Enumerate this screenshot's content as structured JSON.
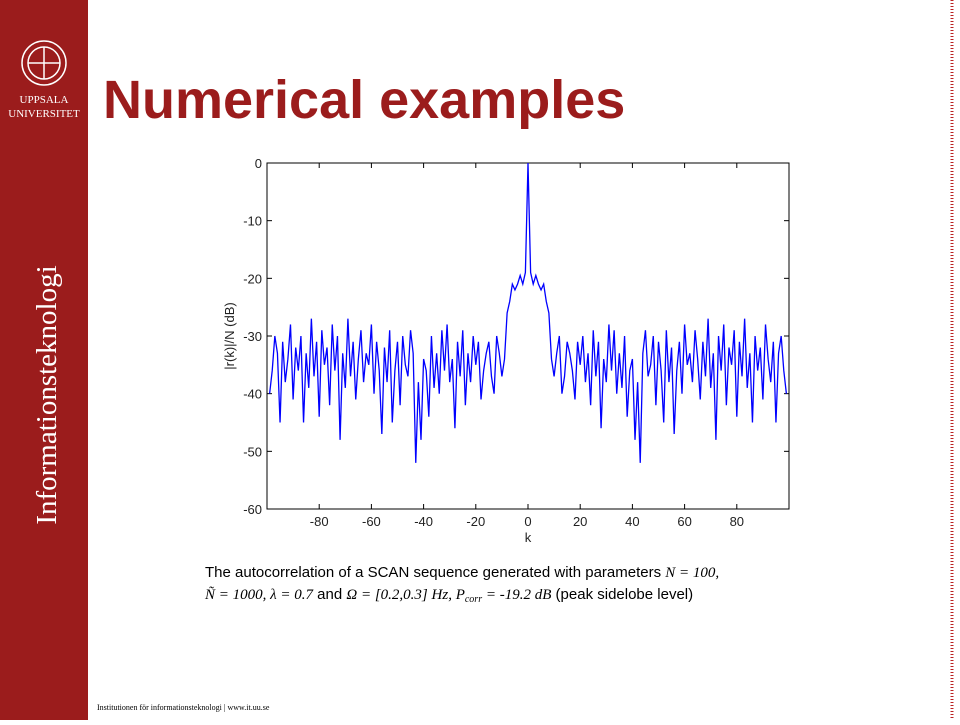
{
  "sidebar": {
    "logo_line1": "UPPSALA",
    "logo_line2": "UNIVERSITET",
    "vertical_text": "Informationsteknologi"
  },
  "title": "Numerical examples",
  "caption": {
    "line1": "The autocorrelation of a SCAN sequence generated with parameters ",
    "line1_math": "N = 100,",
    "line2_math1": "Ñ = 1000, λ = 0.7",
    "line2_and": " and ",
    "line2_math2": "Ω = [0.2,0.3] Hz, P",
    "line2_sub": "corr",
    "line2_math3": " = -19.2 dB",
    "line2_end": " (peak sidelobe level)"
  },
  "footer": "Institutionen för informationsteknologi | www.it.uu.se",
  "chart_data": {
    "type": "line",
    "xlabel": "k",
    "ylabel": "|r(k)|/N (dB)",
    "color": "#0000ff",
    "xlim": [
      -100,
      100
    ],
    "ylim": [
      -60,
      0
    ],
    "xticks": [
      -80,
      -60,
      -40,
      -20,
      0,
      20,
      40,
      60,
      80
    ],
    "yticks": [
      0,
      -10,
      -20,
      -30,
      -40,
      -50,
      -60
    ],
    "x": [
      -99,
      -98,
      -97,
      -96,
      -95,
      -94,
      -93,
      -92,
      -91,
      -90,
      -89,
      -88,
      -87,
      -86,
      -85,
      -84,
      -83,
      -82,
      -81,
      -80,
      -79,
      -78,
      -77,
      -76,
      -75,
      -74,
      -73,
      -72,
      -71,
      -70,
      -69,
      -68,
      -67,
      -66,
      -65,
      -64,
      -63,
      -62,
      -61,
      -60,
      -59,
      -58,
      -57,
      -56,
      -55,
      -54,
      -53,
      -52,
      -51,
      -50,
      -49,
      -48,
      -47,
      -46,
      -45,
      -44,
      -43,
      -42,
      -41,
      -40,
      -39,
      -38,
      -37,
      -36,
      -35,
      -34,
      -33,
      -32,
      -31,
      -30,
      -29,
      -28,
      -27,
      -26,
      -25,
      -24,
      -23,
      -22,
      -21,
      -20,
      -19,
      -18,
      -17,
      -16,
      -15,
      -14,
      -13,
      -12,
      -11,
      -10,
      -9,
      -8,
      -7,
      -6,
      -5,
      -4,
      -3,
      -2,
      -1,
      0,
      1,
      2,
      3,
      4,
      5,
      6,
      7,
      8,
      9,
      10,
      11,
      12,
      13,
      14,
      15,
      16,
      17,
      18,
      19,
      20,
      21,
      22,
      23,
      24,
      25,
      26,
      27,
      28,
      29,
      30,
      31,
      32,
      33,
      34,
      35,
      36,
      37,
      38,
      39,
      40,
      41,
      42,
      43,
      44,
      45,
      46,
      47,
      48,
      49,
      50,
      51,
      52,
      53,
      54,
      55,
      56,
      57,
      58,
      59,
      60,
      61,
      62,
      63,
      64,
      65,
      66,
      67,
      68,
      69,
      70,
      71,
      72,
      73,
      74,
      75,
      76,
      77,
      78,
      79,
      80,
      81,
      82,
      83,
      84,
      85,
      86,
      87,
      88,
      89,
      90,
      91,
      92,
      93,
      94,
      95,
      96,
      97,
      98,
      99
    ],
    "values": [
      -40,
      -36,
      -30,
      -33,
      -45,
      -31,
      -38,
      -34,
      -28,
      -41,
      -32,
      -36,
      -30,
      -45,
      -33,
      -39,
      -27,
      -37,
      -31,
      -44,
      -29,
      -35,
      -32,
      -42,
      -28,
      -36,
      -30,
      -48,
      -33,
      -39,
      -27,
      -37,
      -31,
      -41,
      -34,
      -29,
      -38,
      -33,
      -35,
      -28,
      -40,
      -31,
      -36,
      -47,
      -32,
      -38,
      -29,
      -45,
      -36,
      -31,
      -42,
      -30,
      -35,
      -37,
      -29,
      -33,
      -52,
      -38,
      -48,
      -34,
      -36,
      -44,
      -30,
      -39,
      -33,
      -40,
      -29,
      -36,
      -28,
      -38,
      -34,
      -46,
      -31,
      -37,
      -29,
      -42,
      -33,
      -38,
      -30,
      -35,
      -31,
      -41,
      -36,
      -33,
      -31,
      -37,
      -40,
      -30,
      -33,
      -37,
      -34,
      -26,
      -24,
      -21,
      -22,
      -21,
      -19.5,
      -21,
      -19,
      0,
      -19,
      -21,
      -19.5,
      -21,
      -22,
      -21,
      -24,
      -26,
      -34,
      -37,
      -33,
      -30,
      -40,
      -37,
      -31,
      -33,
      -36,
      -41,
      -31,
      -35,
      -30,
      -38,
      -33,
      -42,
      -29,
      -37,
      -31,
      -46,
      -34,
      -38,
      -28,
      -36,
      -29,
      -40,
      -33,
      -39,
      -30,
      -44,
      -36,
      -34,
      -48,
      -38,
      -52,
      -33,
      -29,
      -37,
      -35,
      -30,
      -42,
      -31,
      -36,
      -45,
      -29,
      -38,
      -32,
      -47,
      -36,
      -31,
      -40,
      -28,
      -35,
      -33,
      -38,
      -29,
      -34,
      -41,
      -31,
      -37,
      -27,
      -39,
      -33,
      -48,
      -30,
      -36,
      -28,
      -42,
      -32,
      -35,
      -29,
      -44,
      -31,
      -37,
      -27,
      -39,
      -33,
      -45,
      -30,
      -36,
      -32,
      -41,
      -28,
      -34,
      -38,
      -31,
      -45,
      -33,
      -30,
      -36,
      -40
    ]
  }
}
